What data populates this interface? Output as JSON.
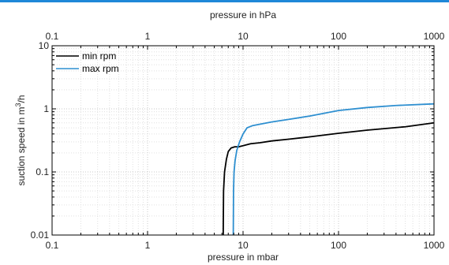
{
  "chart_data": {
    "type": "line",
    "x_scale": "log",
    "y_scale": "log",
    "top_xlabel": "pressure in hPa",
    "xlabel": "pressure in mbar",
    "ylabel": "suction speed in m³/h",
    "ylabel_parts": {
      "before": "suction speed in m",
      "sup": "3",
      "after": "/h"
    },
    "xlim": [
      0.1,
      1000
    ],
    "ylim": [
      0.01,
      10
    ],
    "x_ticks": [
      0.1,
      1,
      10,
      100,
      1000
    ],
    "x_tick_labels": [
      "0.1",
      "1",
      "10",
      "100",
      "1000"
    ],
    "y_ticks": [
      0.01,
      0.1,
      1,
      10
    ],
    "y_tick_labels": [
      "0.01",
      "0.1",
      "1",
      "10"
    ],
    "grid": true,
    "legend_position": "top-left",
    "series": [
      {
        "name": "min rpm",
        "color": "#000000",
        "points": [
          [
            6.2,
            0.01
          ],
          [
            6.25,
            0.05
          ],
          [
            6.4,
            0.1
          ],
          [
            6.7,
            0.16
          ],
          [
            7.0,
            0.21
          ],
          [
            7.5,
            0.24
          ],
          [
            8.2,
            0.25
          ],
          [
            9.0,
            0.25
          ],
          [
            10,
            0.26
          ],
          [
            12,
            0.28
          ],
          [
            15,
            0.29
          ],
          [
            20,
            0.31
          ],
          [
            30,
            0.33
          ],
          [
            50,
            0.36
          ],
          [
            100,
            0.41
          ],
          [
            200,
            0.46
          ],
          [
            500,
            0.52
          ],
          [
            1000,
            0.6
          ]
        ]
      },
      {
        "name": "max rpm",
        "color": "#2e8fd0",
        "points": [
          [
            7.9,
            0.01
          ],
          [
            7.95,
            0.05
          ],
          [
            8.05,
            0.1
          ],
          [
            8.25,
            0.15
          ],
          [
            8.6,
            0.22
          ],
          [
            9.2,
            0.3
          ],
          [
            10.0,
            0.4
          ],
          [
            11.0,
            0.5
          ],
          [
            12.5,
            0.54
          ],
          [
            15,
            0.57
          ],
          [
            20,
            0.62
          ],
          [
            30,
            0.68
          ],
          [
            50,
            0.77
          ],
          [
            100,
            0.94
          ],
          [
            200,
            1.05
          ],
          [
            400,
            1.13
          ],
          [
            1000,
            1.2
          ]
        ]
      }
    ]
  }
}
